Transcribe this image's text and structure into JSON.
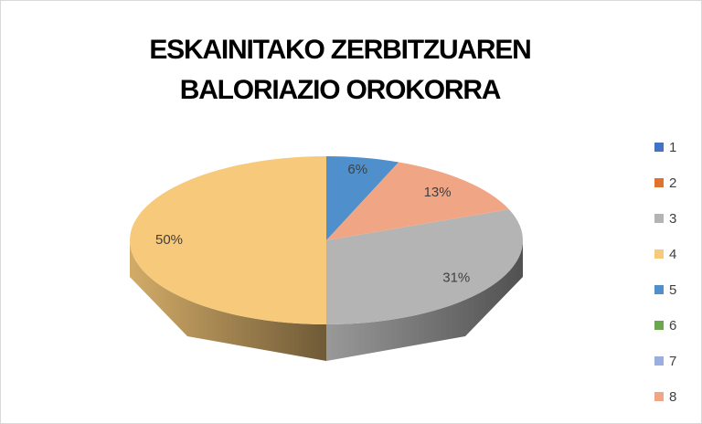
{
  "chart_data": {
    "type": "pie",
    "title": [
      "ESKAINITAKO ZERBITZUAREN",
      "BALORIAZIO OROKORRA"
    ],
    "categories": [
      "1",
      "2",
      "3",
      "4",
      "5",
      "6",
      "7",
      "8"
    ],
    "values": [
      0,
      0,
      31,
      50,
      6,
      0,
      0,
      13
    ],
    "value_labels": [
      null,
      null,
      "31%",
      "50%",
      "6%",
      null,
      null,
      "13%"
    ],
    "colors": [
      "#4472c4",
      "#e0722f",
      "#b4b4b4",
      "#f7c97a",
      "#4f8fcc",
      "#6aa84f",
      "#9aaee0",
      "#f0a585"
    ],
    "legend": "right"
  }
}
